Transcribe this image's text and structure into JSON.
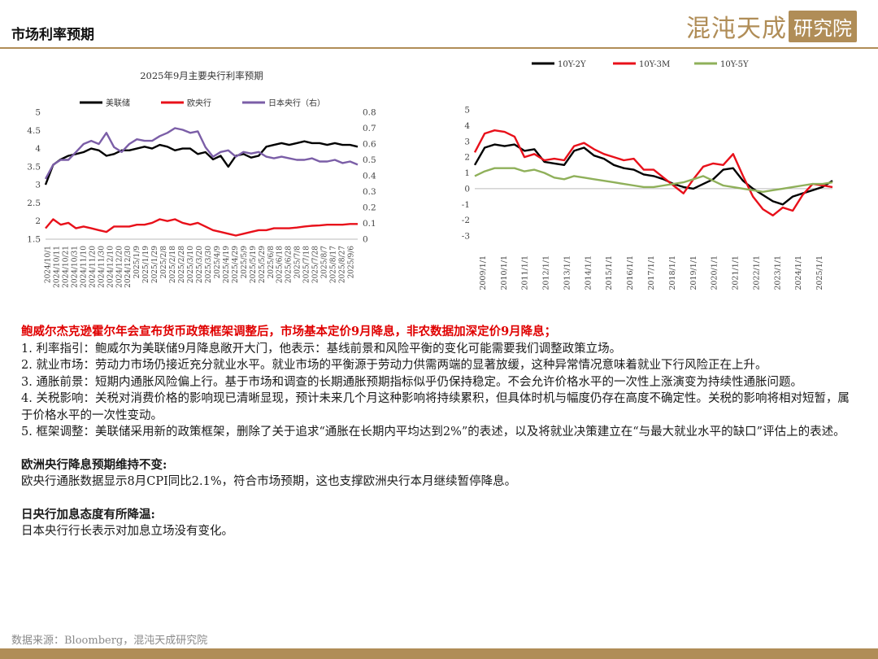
{
  "header": {
    "title": "市场利率预期",
    "logo_left": "混沌天成",
    "logo_right": "研究院"
  },
  "colors": {
    "gold": "#b08d57",
    "black": "#000000",
    "red": "#e8101a",
    "purple": "#7b5ea7",
    "green": "#8fb05a"
  },
  "chart_data": [
    {
      "type": "line",
      "title": "2025年9月主要央行利率预期",
      "legend": [
        "美联储",
        "欧央行",
        "日本央行（右）"
      ],
      "legend_position": "top",
      "y_left": {
        "min": 1.5,
        "max": 5,
        "ticks": [
          "1.5",
          "2",
          "2.5",
          "3",
          "3.5",
          "4",
          "4.5",
          "5"
        ]
      },
      "y_right": {
        "min": 0,
        "max": 0.8,
        "ticks": [
          "0",
          "0.1",
          "0.2",
          "0.3",
          "0.4",
          "0.5",
          "0.6",
          "0.7",
          "0.8"
        ]
      },
      "x_labels": [
        "2024/10/1",
        "2024/10/11",
        "2024/10/21",
        "2024/10/31",
        "2024/11/10",
        "2024/11/20",
        "2024/11/30",
        "2024/12/10",
        "2024/12/20",
        "2024/12/30",
        "2025/1/9",
        "2025/1/19",
        "2025/1/29",
        "2025/2/8",
        "2025/2/18",
        "2025/2/28",
        "2025/3/10",
        "2025/3/20",
        "2025/3/30",
        "2025/4/9",
        "2025/4/19",
        "2025/4/29",
        "2025/5/9",
        "2025/5/19",
        "2025/5/29",
        "2025/6/8",
        "2025/6/18",
        "2025/6/28",
        "2025/7/8",
        "2025/7/18",
        "2025/7/28",
        "2025/8/7",
        "2025/8/17",
        "2025/8/27",
        "2025/9/6"
      ],
      "series": [
        {
          "name": "美联储",
          "axis": "left",
          "color": "#000000",
          "values": [
            3.0,
            3.55,
            3.7,
            3.8,
            3.85,
            3.9,
            4.0,
            3.95,
            3.8,
            3.85,
            3.95,
            3.95,
            4.0,
            4.05,
            4.0,
            4.1,
            4.05,
            3.95,
            4.0,
            4.0,
            3.85,
            3.9,
            3.7,
            3.8,
            3.5,
            3.8,
            3.85,
            3.75,
            3.8,
            4.05,
            4.1,
            4.15,
            4.1,
            4.15,
            4.2,
            4.15,
            4.15,
            4.1,
            4.15,
            4.1,
            4.1,
            4.05
          ]
        },
        {
          "name": "欧央行",
          "axis": "left",
          "color": "#e8101a",
          "values": [
            1.8,
            2.05,
            1.9,
            1.95,
            1.8,
            1.85,
            1.8,
            1.75,
            1.7,
            1.85,
            1.85,
            1.85,
            1.9,
            1.9,
            1.95,
            2.05,
            2.0,
            2.05,
            1.95,
            1.9,
            1.95,
            1.85,
            1.75,
            1.7,
            1.65,
            1.6,
            1.65,
            1.7,
            1.75,
            1.75,
            1.8,
            1.8,
            1.8,
            1.82,
            1.85,
            1.87,
            1.88,
            1.9,
            1.9,
            1.9,
            1.92,
            1.92
          ]
        },
        {
          "name": "日本央行（右）",
          "axis": "right",
          "color": "#7b5ea7",
          "values": [
            0.38,
            0.47,
            0.5,
            0.5,
            0.55,
            0.6,
            0.62,
            0.6,
            0.67,
            0.58,
            0.55,
            0.6,
            0.63,
            0.62,
            0.62,
            0.65,
            0.67,
            0.7,
            0.69,
            0.67,
            0.68,
            0.58,
            0.52,
            0.55,
            0.56,
            0.52,
            0.55,
            0.54,
            0.55,
            0.52,
            0.51,
            0.52,
            0.51,
            0.5,
            0.5,
            0.51,
            0.49,
            0.49,
            0.5,
            0.48,
            0.49,
            0.47
          ]
        }
      ]
    },
    {
      "type": "line",
      "title": "",
      "legend": [
        "10Y-2Y",
        "10Y-3M",
        "10Y-5Y"
      ],
      "legend_position": "top",
      "y_left": {
        "min": -3,
        "max": 5,
        "ticks": [
          "-3",
          "-2",
          "-1",
          "0",
          "1",
          "2",
          "3",
          "4",
          "5"
        ]
      },
      "x_labels": [
        "2009/1/1",
        "2010/1/1",
        "2011/1/1",
        "2012/1/1",
        "2013/1/1",
        "2014/1/1",
        "2015/1/1",
        "2016/1/1",
        "2017/1/1",
        "2018/1/1",
        "2019/1/1",
        "2020/1/1",
        "2021/1/1",
        "2022/1/1",
        "2023/1/1",
        "2024/1/1",
        "2025/1/1"
      ],
      "series": [
        {
          "name": "10Y-2Y",
          "color": "#000000",
          "values": [
            1.5,
            2.6,
            2.8,
            2.7,
            2.8,
            2.4,
            2.5,
            1.7,
            1.6,
            1.5,
            2.4,
            2.6,
            2.1,
            1.9,
            1.5,
            1.3,
            1.2,
            0.9,
            0.8,
            0.6,
            0.3,
            0.1,
            0.0,
            0.3,
            0.6,
            1.2,
            1.3,
            0.5,
            0.0,
            -0.4,
            -0.8,
            -1.0,
            -0.5,
            -0.3,
            -0.1,
            0.1,
            0.5
          ]
        },
        {
          "name": "10Y-3M",
          "color": "#e8101a",
          "values": [
            2.3,
            3.5,
            3.7,
            3.6,
            3.3,
            2.0,
            2.2,
            1.8,
            1.9,
            1.8,
            2.7,
            2.9,
            2.5,
            2.2,
            2.0,
            1.8,
            1.9,
            1.2,
            1.2,
            0.7,
            0.2,
            -0.3,
            0.6,
            1.4,
            1.6,
            1.5,
            2.2,
            0.8,
            -0.5,
            -1.3,
            -1.7,
            -1.2,
            -1.4,
            -0.4,
            0.3,
            0.2,
            0.1
          ]
        },
        {
          "name": "10Y-5Y",
          "color": "#8fb05a",
          "values": [
            0.8,
            1.1,
            1.3,
            1.3,
            1.3,
            1.1,
            1.2,
            1.0,
            0.7,
            0.6,
            0.8,
            0.7,
            0.6,
            0.5,
            0.4,
            0.3,
            0.2,
            0.1,
            0.1,
            0.2,
            0.3,
            0.4,
            0.6,
            0.8,
            0.5,
            0.2,
            0.1,
            0.0,
            -0.1,
            -0.2,
            -0.1,
            0.0,
            0.1,
            0.2,
            0.3,
            0.3,
            0.4
          ]
        }
      ]
    }
  ],
  "content": {
    "headline": "鲍威尔杰克逊霍尔年会宣布货币政策框架调整后，市场基本定价9月降息，非农数据加深定价9月降息；",
    "points": [
      "1. 利率指引：鲍威尔为美联储9月降息敞开大门，他表示：基线前景和风险平衡的变化可能需要我们调整政策立场。",
      "2. 就业市场：劳动力市场仍接近充分就业水平。就业市场的平衡源于劳动力供需两端的显著放缓，这种异常情况意味着就业下行风险正在上升。",
      "3. 通胀前景：短期内通胀风险偏上行。基于市场和调查的长期通胀预期指标似乎仍保持稳定。不会允许价格水平的一次性上涨演变为持续性通胀问题。",
      "4. 关税影响：关税对消费价格的影响现已清晰显现，预计未来几个月这种影响将持续累积，但具体时机与幅度仍存在高度不确定性。关税的影响将相对短暂，属于价格水平的一次性变动。",
      "5. 框架调整：美联储采用新的政策框架，删除了关于追求“通胀在长期内平均达到2%”的表述，以及将就业决策建立在“与最大就业水平的缺口”评估上的表述。"
    ],
    "ecb_heading": "欧洲央行降息预期维持不变:",
    "ecb_text": "欧央行通胀数据显示8月CPI同比2.1%，符合市场预期，这也支撑欧洲央行本月继续暂停降息。",
    "boj_heading": "日央行加息态度有所降温:",
    "boj_text": "日本央行行长表示对加息立场没有变化。"
  },
  "footer": {
    "source": "数据来源：Bloomberg，混沌天成研究院"
  }
}
